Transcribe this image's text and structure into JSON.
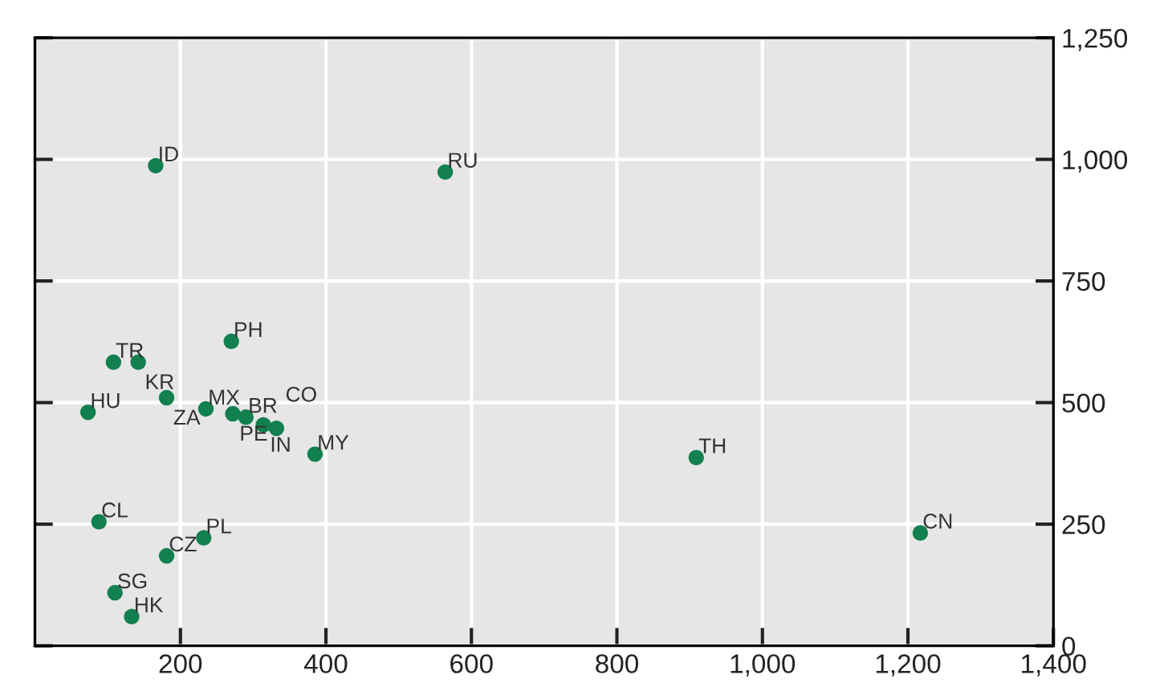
{
  "chart_data": {
    "type": "scatter",
    "marker": "circle",
    "grid": true,
    "legend": false,
    "x": [
      166,
      564,
      909,
      1217,
      270,
      108,
      142,
      181,
      73,
      235,
      272,
      290,
      314,
      332,
      385,
      88,
      232,
      181,
      110,
      133
    ],
    "series": [
      {
        "color": "#13804f",
        "values": [
          987,
          974,
          387,
          232,
          626,
          583,
          583,
          510,
          480,
          487,
          477,
          470,
          454,
          447,
          394,
          255,
          222,
          185,
          109,
          60
        ]
      }
    ],
    "annotations": [
      {
        "text": "ID",
        "x": 166,
        "y": 987
      },
      {
        "text": "RU",
        "x": 564,
        "y": 974
      },
      {
        "text": "TH",
        "x": 909,
        "y": 387
      },
      {
        "text": "CN",
        "x": 1217,
        "y": 232
      },
      {
        "text": "PH",
        "x": 270,
        "y": 626
      },
      {
        "text": "TR",
        "x": 108,
        "y": 583
      },
      {
        "text": "KR",
        "x": 142,
        "y": 583
      },
      {
        "text": "ZA",
        "x": 181,
        "y": 510
      },
      {
        "text": "HU",
        "x": 73,
        "y": 480
      },
      {
        "text": "MX",
        "x": 235,
        "y": 487
      },
      {
        "text": "PE",
        "x": 272,
        "y": 477
      },
      {
        "text": "BR",
        "x": 290,
        "y": 470
      },
      {
        "text": "IN",
        "x": 314,
        "y": 454
      },
      {
        "text": "CO",
        "x": 332,
        "y": 447
      },
      {
        "text": "MY",
        "x": 385,
        "y": 394
      },
      {
        "text": "CL",
        "x": 88,
        "y": 255
      },
      {
        "text": "PL",
        "x": 232,
        "y": 222
      },
      {
        "text": "CZ",
        "x": 181,
        "y": 185
      },
      {
        "text": "SG",
        "x": 110,
        "y": 109
      },
      {
        "text": "HK",
        "x": 133,
        "y": 60
      }
    ],
    "xlim": [
      0,
      1400
    ],
    "ylim": [
      0,
      1250
    ],
    "xticks": [
      200,
      400,
      600,
      800,
      {
        "value": 1000,
        "label": "1,000"
      },
      {
        "value": 1200,
        "label": "1,200"
      },
      {
        "value": 1400,
        "label": "1,400"
      }
    ],
    "yticks": [
      0,
      250,
      500,
      750,
      {
        "value": 1000,
        "label": "1,000"
      },
      {
        "value": 1250,
        "label": "1,250"
      }
    ]
  }
}
